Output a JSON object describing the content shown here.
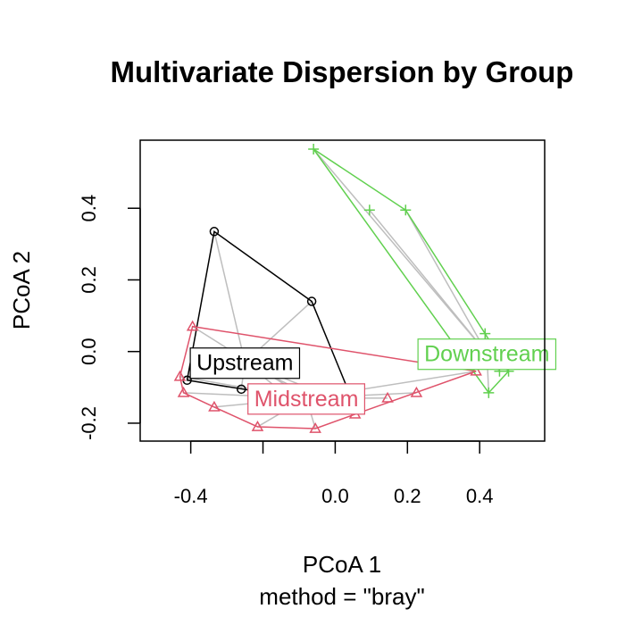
{
  "chart_data": {
    "type": "scatter",
    "title": "Multivariate Dispersion by Group",
    "xlabel": "PCoA 1",
    "ylabel": "PCoA 2",
    "sub": "method = \"bray\"",
    "xlim": [
      -0.54,
      0.58
    ],
    "ylim": [
      -0.25,
      0.59
    ],
    "x_ticks": [
      -0.4,
      0.0,
      0.2,
      0.4
    ],
    "x_tick_marks": [
      -0.4,
      -0.2,
      0.0,
      0.2,
      0.4
    ],
    "x_tick_labels": [
      "-0.4",
      "0.0",
      "0.2",
      "0.4"
    ],
    "y_ticks": [
      -0.2,
      0.0,
      0.2,
      0.4
    ],
    "y_tick_labels": [
      "-0.2",
      "0.0",
      "0.2",
      "0.4"
    ],
    "grid": false,
    "series": [
      {
        "name": "Upstream",
        "color": "#000000",
        "marker": "circle",
        "centroid": [
          -0.25,
          -0.03
        ],
        "points": [
          [
            -0.335,
            0.335
          ],
          [
            -0.065,
            0.14
          ],
          [
            0.055,
            -0.155
          ],
          [
            -0.41,
            -0.08
          ],
          [
            -0.26,
            -0.105
          ],
          [
            -0.15,
            -0.11
          ],
          [
            -0.085,
            -0.115
          ]
        ],
        "hull": [
          0,
          1,
          2,
          3
        ]
      },
      {
        "name": "Midstream",
        "color": "#DF536B",
        "marker": "triangle",
        "centroid": [
          -0.08,
          -0.13
        ],
        "points": [
          [
            -0.395,
            0.07
          ],
          [
            0.39,
            -0.055
          ],
          [
            0.055,
            -0.175
          ],
          [
            -0.055,
            -0.215
          ],
          [
            -0.215,
            -0.21
          ],
          [
            -0.335,
            -0.155
          ],
          [
            -0.42,
            -0.115
          ],
          [
            -0.43,
            -0.07
          ],
          [
            0.145,
            -0.13
          ],
          [
            0.225,
            -0.115
          ]
        ],
        "hull": [
          0,
          1,
          2,
          3,
          4,
          5,
          6,
          7
        ]
      },
      {
        "name": "Downstream",
        "color": "#61D04F",
        "marker": "plus",
        "centroid": [
          0.42,
          -0.005
        ],
        "points": [
          [
            -0.06,
            0.565
          ],
          [
            0.195,
            0.395
          ],
          [
            0.095,
            0.395
          ],
          [
            0.415,
            0.05
          ],
          [
            0.425,
            -0.115
          ],
          [
            0.48,
            -0.055
          ],
          [
            0.455,
            -0.055
          ]
        ],
        "hull": [
          0,
          1,
          3,
          5,
          4
        ]
      }
    ]
  }
}
